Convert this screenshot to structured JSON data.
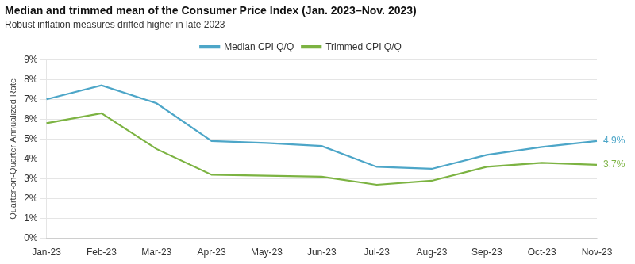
{
  "chart_data": {
    "type": "line",
    "title": "Median and trimmed mean of the Consumer Price Index (Jan. 2023–Nov. 2023)",
    "subtitle": "Robust inflation measures drifted higher in late 2023",
    "ylabel": "Quarter-on-Quarter Annualized Rate",
    "categories": [
      "Jan-23",
      "Feb-23",
      "Mar-23",
      "Apr-23",
      "May-23",
      "Jun-23",
      "Jul-23",
      "Aug-23",
      "Sep-23",
      "Oct-23",
      "Nov-23"
    ],
    "series": [
      {
        "name": "Median CPI Q/Q",
        "color": "#4DA6C8",
        "values": [
          7.0,
          7.7,
          6.8,
          4.9,
          4.8,
          4.65,
          3.6,
          3.5,
          4.2,
          4.6,
          4.9
        ]
      },
      {
        "name": "Trimmed CPI Q/Q",
        "color": "#7CB342",
        "values": [
          5.8,
          6.3,
          4.5,
          3.2,
          3.15,
          3.1,
          2.7,
          2.9,
          3.6,
          3.8,
          3.7
        ]
      }
    ],
    "annotations": [
      {
        "text": "4.9%",
        "x": "Nov-23",
        "y": 4.9,
        "color": "#4DA6C8"
      },
      {
        "text": "3.7%",
        "x": "Nov-23",
        "y": 3.7,
        "color": "#7CB342"
      }
    ],
    "ylim": [
      0,
      9
    ],
    "yticks": [
      {
        "value": 0,
        "label": "0%"
      },
      {
        "value": 1,
        "label": "1%"
      },
      {
        "value": 2,
        "label": "2%"
      },
      {
        "value": 3,
        "label": "3%"
      },
      {
        "value": 4,
        "label": "4%"
      },
      {
        "value": 5,
        "label": "5%"
      },
      {
        "value": 6,
        "label": "6%"
      },
      {
        "value": 7,
        "label": "7%"
      },
      {
        "value": 8,
        "label": "8%"
      },
      {
        "value": 9,
        "label": "9%"
      }
    ],
    "grid": "y",
    "legend": "top"
  }
}
